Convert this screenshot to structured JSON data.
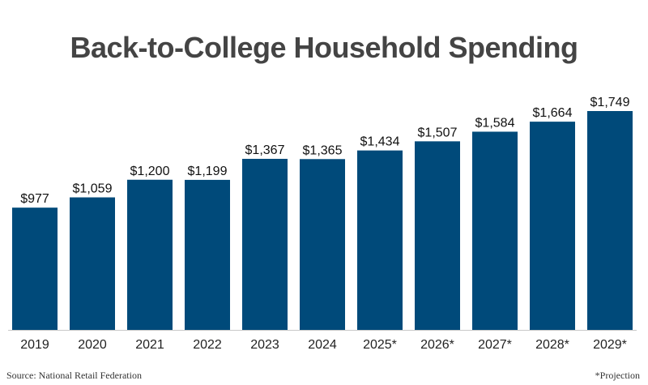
{
  "chart_data": {
    "type": "bar",
    "title": "Back-to-College Household Spending",
    "xlabel": "",
    "ylabel": "",
    "categories": [
      "2019",
      "2020",
      "2021",
      "2022",
      "2023",
      "2024",
      "2025*",
      "2026*",
      "2027*",
      "2028*",
      "2029*"
    ],
    "values": [
      977,
      1059,
      1200,
      1199,
      1367,
      1365,
      1434,
      1507,
      1584,
      1664,
      1749
    ],
    "value_labels": [
      "$977",
      "$1,059",
      "$1,200",
      "$1,199",
      "$1,367",
      "$1,365",
      "$1,434",
      "$1,507",
      "$1,584",
      "$1,664",
      "$1,749"
    ],
    "ylim": [
      0,
      1800
    ],
    "grid": false,
    "legend": "none",
    "bar_color": "#004a7a"
  },
  "source": "Source: National Retail Federation",
  "footnote": "*Projection"
}
